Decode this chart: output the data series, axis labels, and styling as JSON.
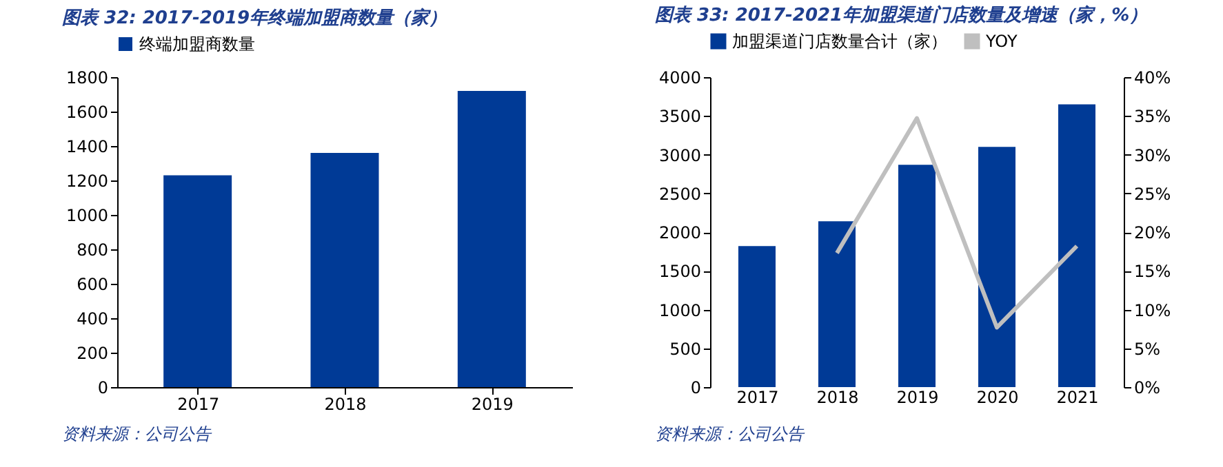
{
  "chart_data": [
    {
      "type": "bar",
      "title": "图表 32:  2017-2019年终端加盟商数量（家）",
      "categories": [
        "2017",
        "2018",
        "2019"
      ],
      "series": [
        {
          "name": "终端加盟商数量",
          "color": "#003a96",
          "values": [
            1230,
            1360,
            1720
          ]
        }
      ],
      "ylim": [
        0,
        1800
      ],
      "yticks": [
        0,
        200,
        400,
        600,
        800,
        1000,
        1200,
        1400,
        1600,
        1800
      ],
      "grid": false,
      "legend": "top",
      "annotations": [
        "资料来源：公司公告"
      ]
    },
    {
      "type": "bar",
      "title": "图表 33:  2017-2021年加盟渠道门店数量及增速（家，%）",
      "categories": [
        "2017",
        "2018",
        "2019",
        "2020",
        "2021"
      ],
      "series": [
        {
          "name": "加盟渠道门店数量合计（家）",
          "color": "#003a96",
          "values": [
            1820,
            2140,
            2870,
            3100,
            3650
          ]
        },
        {
          "name": "YOY",
          "type": "line",
          "axis": "y2",
          "color": "#bfbfbf",
          "values": [
            null,
            17.3,
            34.7,
            7.7,
            18.2
          ]
        }
      ],
      "ylim": [
        0,
        4000
      ],
      "yticks": [
        0,
        500,
        1000,
        1500,
        2000,
        2500,
        3000,
        3500,
        4000
      ],
      "y2lim": [
        0,
        40
      ],
      "y2ticks": [
        {
          "value": 0,
          "label": "0%"
        },
        {
          "value": 5,
          "label": "5%"
        },
        {
          "value": 10,
          "label": "10%"
        },
        {
          "value": 15,
          "label": "15%"
        },
        {
          "value": 20,
          "label": "20%"
        },
        {
          "value": 25,
          "label": "25%"
        },
        {
          "value": 30,
          "label": "30%"
        },
        {
          "value": 35,
          "label": "35%"
        },
        {
          "value": 40,
          "label": "40%"
        }
      ],
      "grid": false,
      "legend": "top",
      "line_style": "solid",
      "marker": "none",
      "annotations": [
        "资料来源：公司公告"
      ]
    }
  ]
}
